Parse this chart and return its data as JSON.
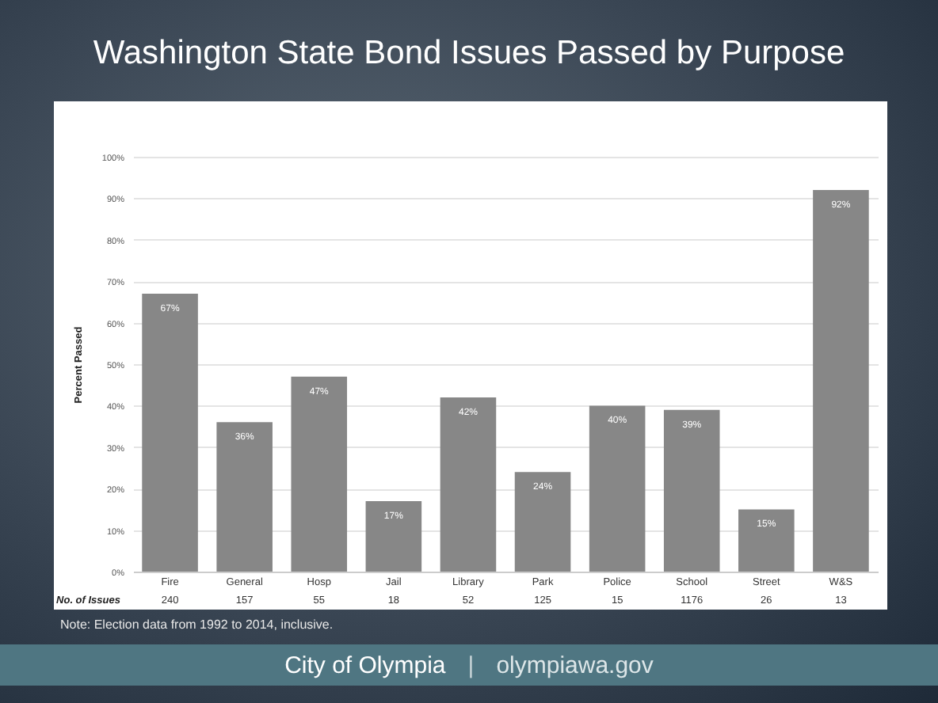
{
  "chart_data": {
    "type": "bar",
    "title": "Washington State Bond Issues Passed by Purpose",
    "ylabel": "Percent Passed",
    "categories": [
      "Fire",
      "General",
      "Hosp",
      "Jail",
      "Library",
      "Park",
      "Police",
      "School",
      "Street",
      "W&S"
    ],
    "values": [
      67,
      36,
      47,
      17,
      42,
      24,
      40,
      39,
      15,
      92
    ],
    "value_labels": [
      "67%",
      "36%",
      "47%",
      "17%",
      "42%",
      "24%",
      "40%",
      "39%",
      "15%",
      "92%"
    ],
    "color": "#878787",
    "ylim": [
      0,
      100
    ],
    "yticks": [
      {
        "value": 0,
        "label": "0%"
      },
      {
        "value": 10,
        "label": "10%"
      },
      {
        "value": 20,
        "label": "20%"
      },
      {
        "value": 30,
        "label": "30%"
      },
      {
        "value": 40,
        "label": "40%"
      },
      {
        "value": 50,
        "label": "50%"
      },
      {
        "value": 60,
        "label": "60%"
      },
      {
        "value": 70,
        "label": "70%"
      },
      {
        "value": 80,
        "label": "80%"
      },
      {
        "value": 90,
        "label": "90%"
      },
      {
        "value": 100,
        "label": "100%"
      }
    ],
    "grid": "y",
    "annotations": [
      "No. of Issues",
      "240",
      "157",
      "55",
      "18",
      "52",
      "125",
      "15",
      "1176",
      "26",
      "13",
      "Note: Election data from 1992 to 2014, inclusive.",
      "City of Olympia",
      "|",
      "olympiawa.gov"
    ]
  }
}
